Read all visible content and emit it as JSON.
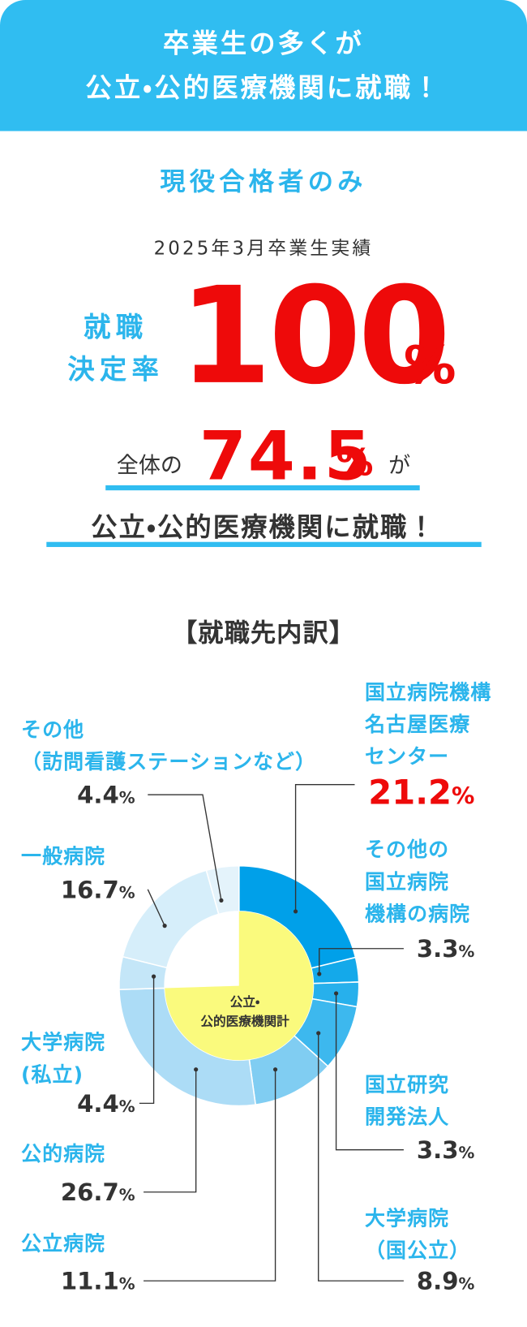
{
  "header": {
    "title": "卒業生の多くが\n公立・公的医療機関に就職！"
  },
  "summary": {
    "subtitle": "現役合格者のみ",
    "period": "2025年3月卒業生実績",
    "rate_label": "就職\n決定率",
    "rate_value": 100,
    "rate_unit": "%",
    "share_prefix": "全体の",
    "share_value": 74.5,
    "share_unit": "%",
    "share_suffix": "が",
    "share_text": "公立・公的医療機関に就職！"
  },
  "chart_data": {
    "type": "donut",
    "title": "【就職先内訳】",
    "categories": [
      "国立病院機構\n名古屋医療\nセンター",
      "その他の\n国立病院\n機構の病院",
      "国立研究\n開発法人",
      "大学病院\n（国公立）",
      "公立病院",
      "公的病院",
      "大学病院\n(私立)",
      "一般病院",
      "その他\n（訪問看護ステーションなど）"
    ],
    "values": [
      21.2,
      3.3,
      3.3,
      8.9,
      11.1,
      26.7,
      4.4,
      16.7,
      4.4
    ],
    "value_labels": [
      "21.2%",
      "3.3%",
      "3.3%",
      "8.9%",
      "11.1%",
      "26.7%",
      "4.4%",
      "16.7%",
      "4.4%"
    ],
    "colors": [
      "#00a0e9",
      "#14a9ea",
      "#27b0ec",
      "#3db8ee",
      "#80cdf2",
      "#acdcf6",
      "#c4e6f8",
      "#d6eefa",
      "#e4f3fb"
    ],
    "inner": {
      "label": "公立・\n公的医療機関計",
      "value": 74.5,
      "color": "#fafa7d"
    }
  }
}
